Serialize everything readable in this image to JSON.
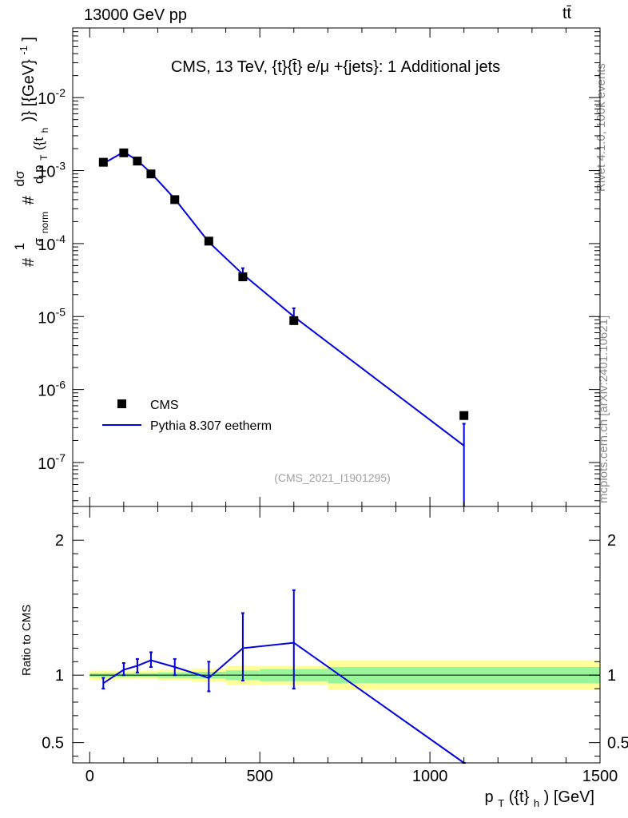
{
  "header": {
    "left": "13000 GeV pp",
    "right": "tt̄"
  },
  "side_labels": {
    "rivet": "Rivet 4.1.0,  100k events",
    "mcplots": "mcplots.cern.ch [arXiv:2401.10621]"
  },
  "chart_data": [
    {
      "type": "scatter",
      "title": "CMS, 13 TeV, {t}{t̄} e/μ +{jets}: 1 Additional jets",
      "watermark": "(CMS_2021_I1901295)",
      "yscale": "log",
      "xlim": [
        -50,
        1500
      ],
      "ylim": [
        2.5e-08,
        0.09
      ],
      "ylabel": {
        "prefix": "#",
        "frac1_num": "1",
        "frac1_den": "σ",
        "frac1_den_sub": "norm",
        "mid": "#",
        "frac2_num": "dσ",
        "frac2_den": "d p",
        "frac2_den_sub": "T",
        "frac2_den_rest": "({t",
        "frac2_den_rest_sub": "h",
        "suffix": ")} [{GeV}",
        "suffix_sup": "-1",
        "suffix_end": "]"
      },
      "ytick_labels": [
        {
          "base": "10",
          "exp": "-2"
        },
        {
          "base": "10",
          "exp": "-3"
        },
        {
          "base": "10",
          "exp": "-4"
        },
        {
          "base": "10",
          "exp": "-5"
        },
        {
          "base": "10",
          "exp": "-6"
        },
        {
          "base": "10",
          "exp": "-7"
        }
      ],
      "ytick_values": [
        0.01,
        0.001,
        0.0001,
        1e-05,
        1e-06,
        1e-07
      ],
      "legend": {
        "position": "lower-left",
        "data_label": "CMS",
        "mc_label": "Pythia 8.307 eetherm"
      },
      "series": [
        {
          "name": "CMS",
          "style": "markers",
          "color": "#000000",
          "x": [
            40,
            100,
            140,
            180,
            250,
            350,
            450,
            600,
            1100
          ],
          "y": [
            0.0013,
            0.00175,
            0.00135,
            0.0009,
            0.0004,
            0.000108,
            3.5e-05,
            8.8e-06,
            4.4e-07
          ]
        },
        {
          "name": "Pythia 8.307 eetherm",
          "style": "line",
          "color": "#0000e0",
          "x": [
            40,
            100,
            140,
            180,
            250,
            350,
            450,
            600,
            1100
          ],
          "y": [
            0.00125,
            0.0018,
            0.00138,
            0.00093,
            0.00041,
            0.000105,
            3.8e-05,
            1e-05,
            1.7e-07
          ],
          "err_lo": [
            0.00117,
            0.00171,
            0.00131,
            0.00088,
            0.000395,
            9.6e-05,
            3.2e-05,
            7.8e-06,
            1e-09
          ],
          "err_hi": [
            0.00133,
            0.00189,
            0.00145,
            0.00098,
            0.00043,
            0.000114,
            4.6e-05,
            1.3e-05,
            3.4e-07
          ]
        }
      ]
    },
    {
      "type": "line",
      "ylabel": "Ratio to CMS",
      "xlabel": {
        "pre": "p",
        "sub1": "T",
        "mid": "({t}",
        "sub2": "h",
        "post": ") [GeV]"
      },
      "xlim": [
        -50,
        1500
      ],
      "ylim": [
        0.35,
        2.25
      ],
      "xtick_labels": [
        "0",
        "500",
        "1000",
        "1500"
      ],
      "xtick_values": [
        0,
        500,
        1000,
        1500
      ],
      "ytick_labels": [
        "2",
        "1",
        "0.5"
      ],
      "ytick_values": [
        2,
        1,
        0.5
      ],
      "reference": 1,
      "bands": {
        "edges": [
          0,
          80,
          120,
          160,
          200,
          300,
          400,
          500,
          700,
          1500
        ],
        "inner_lo": [
          0.985,
          0.985,
          0.985,
          0.985,
          0.98,
          0.975,
          0.965,
          0.955,
          0.94
        ],
        "inner_hi": [
          1.015,
          1.015,
          1.015,
          1.015,
          1.02,
          1.025,
          1.035,
          1.045,
          1.06
        ],
        "outer_lo": [
          0.965,
          0.97,
          0.97,
          0.97,
          0.96,
          0.95,
          0.93,
          0.93,
          0.89
        ],
        "outer_hi": [
          1.035,
          1.03,
          1.03,
          1.03,
          1.04,
          1.05,
          1.07,
          1.07,
          1.11
        ],
        "inner_color": "#99f599",
        "outer_color": "#ffff99"
      },
      "series": [
        {
          "name": "Pythia 8.307 eetherm / CMS",
          "color": "#0000e0",
          "x": [
            40,
            100,
            140,
            180,
            250,
            350,
            450,
            600,
            1100
          ],
          "y": [
            0.94,
            1.04,
            1.07,
            1.11,
            1.06,
            0.98,
            1.2,
            1.24,
            0.35
          ],
          "err_lo": [
            0.9,
            1.0,
            1.02,
            1.06,
            1.0,
            0.88,
            0.96,
            0.9,
            0.35
          ],
          "err_hi": [
            0.98,
            1.09,
            1.12,
            1.17,
            1.12,
            1.1,
            1.46,
            1.63,
            0.35
          ]
        }
      ]
    }
  ]
}
